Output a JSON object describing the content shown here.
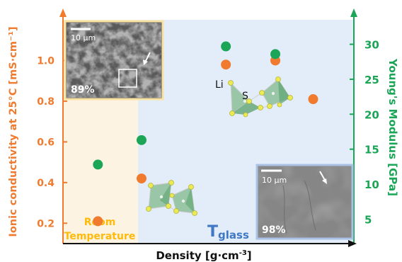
{
  "chart_data": {
    "type": "scatter",
    "xlabel_main": "Density [g·cm",
    "xlabel_sup": "-3",
    "xlabel_end": "]",
    "ylabel_left": "Ionic conductivity at 25°C [mS·cm⁻¹]",
    "ylabel_right": "Young's Modulus [GPa]",
    "left_ticks": [
      "0.2",
      "0.4",
      "0.6",
      "0.8",
      "1.0"
    ],
    "right_ticks": [
      "5",
      "10",
      "15",
      "20",
      "25",
      "30"
    ],
    "ylim_left": [
      0.1,
      1.2
    ],
    "ylim_right": [
      1.5,
      33.5
    ],
    "x_relative_range": [
      0,
      1
    ],
    "series": [
      {
        "metric": "ionic_conductivity",
        "color": "#f07a2e",
        "points": [
          {
            "x": 0.12,
            "y": 0.21
          },
          {
            "x": 0.27,
            "y": 0.42
          },
          {
            "x": 0.56,
            "y": 0.98
          },
          {
            "x": 0.73,
            "y": 1.0
          },
          {
            "x": 0.86,
            "y": 0.81
          }
        ]
      },
      {
        "metric": "youngs_modulus",
        "color": "#1aa656",
        "points": [
          {
            "x": 0.12,
            "y": 12.8
          },
          {
            "x": 0.27,
            "y": 16.3
          },
          {
            "x": 0.56,
            "y": 29.7
          },
          {
            "x": 0.73,
            "y": 28.6
          }
        ]
      }
    ],
    "regions": [
      {
        "line1": "Room",
        "line2": "Temperature",
        "color": "#ffba0a",
        "fill": "#fdf3e3"
      },
      {
        "label_main": "T",
        "label_sub": "glass",
        "color": "#3f78c5",
        "fill": "#e3edf9"
      }
    ],
    "insets": [
      {
        "scale_label": "10 µm",
        "percent": "89%",
        "border": "#f8e3a2"
      },
      {
        "scale_label": "10 µm",
        "percent": "98%",
        "border": "#a9c2e6"
      }
    ],
    "structure_labels": [
      "Li",
      "S"
    ],
    "colors": {
      "orange": "#f07a2e",
      "green": "#1aa656",
      "blue": "#3f78c5",
      "yellow": "#ffba0a"
    }
  }
}
